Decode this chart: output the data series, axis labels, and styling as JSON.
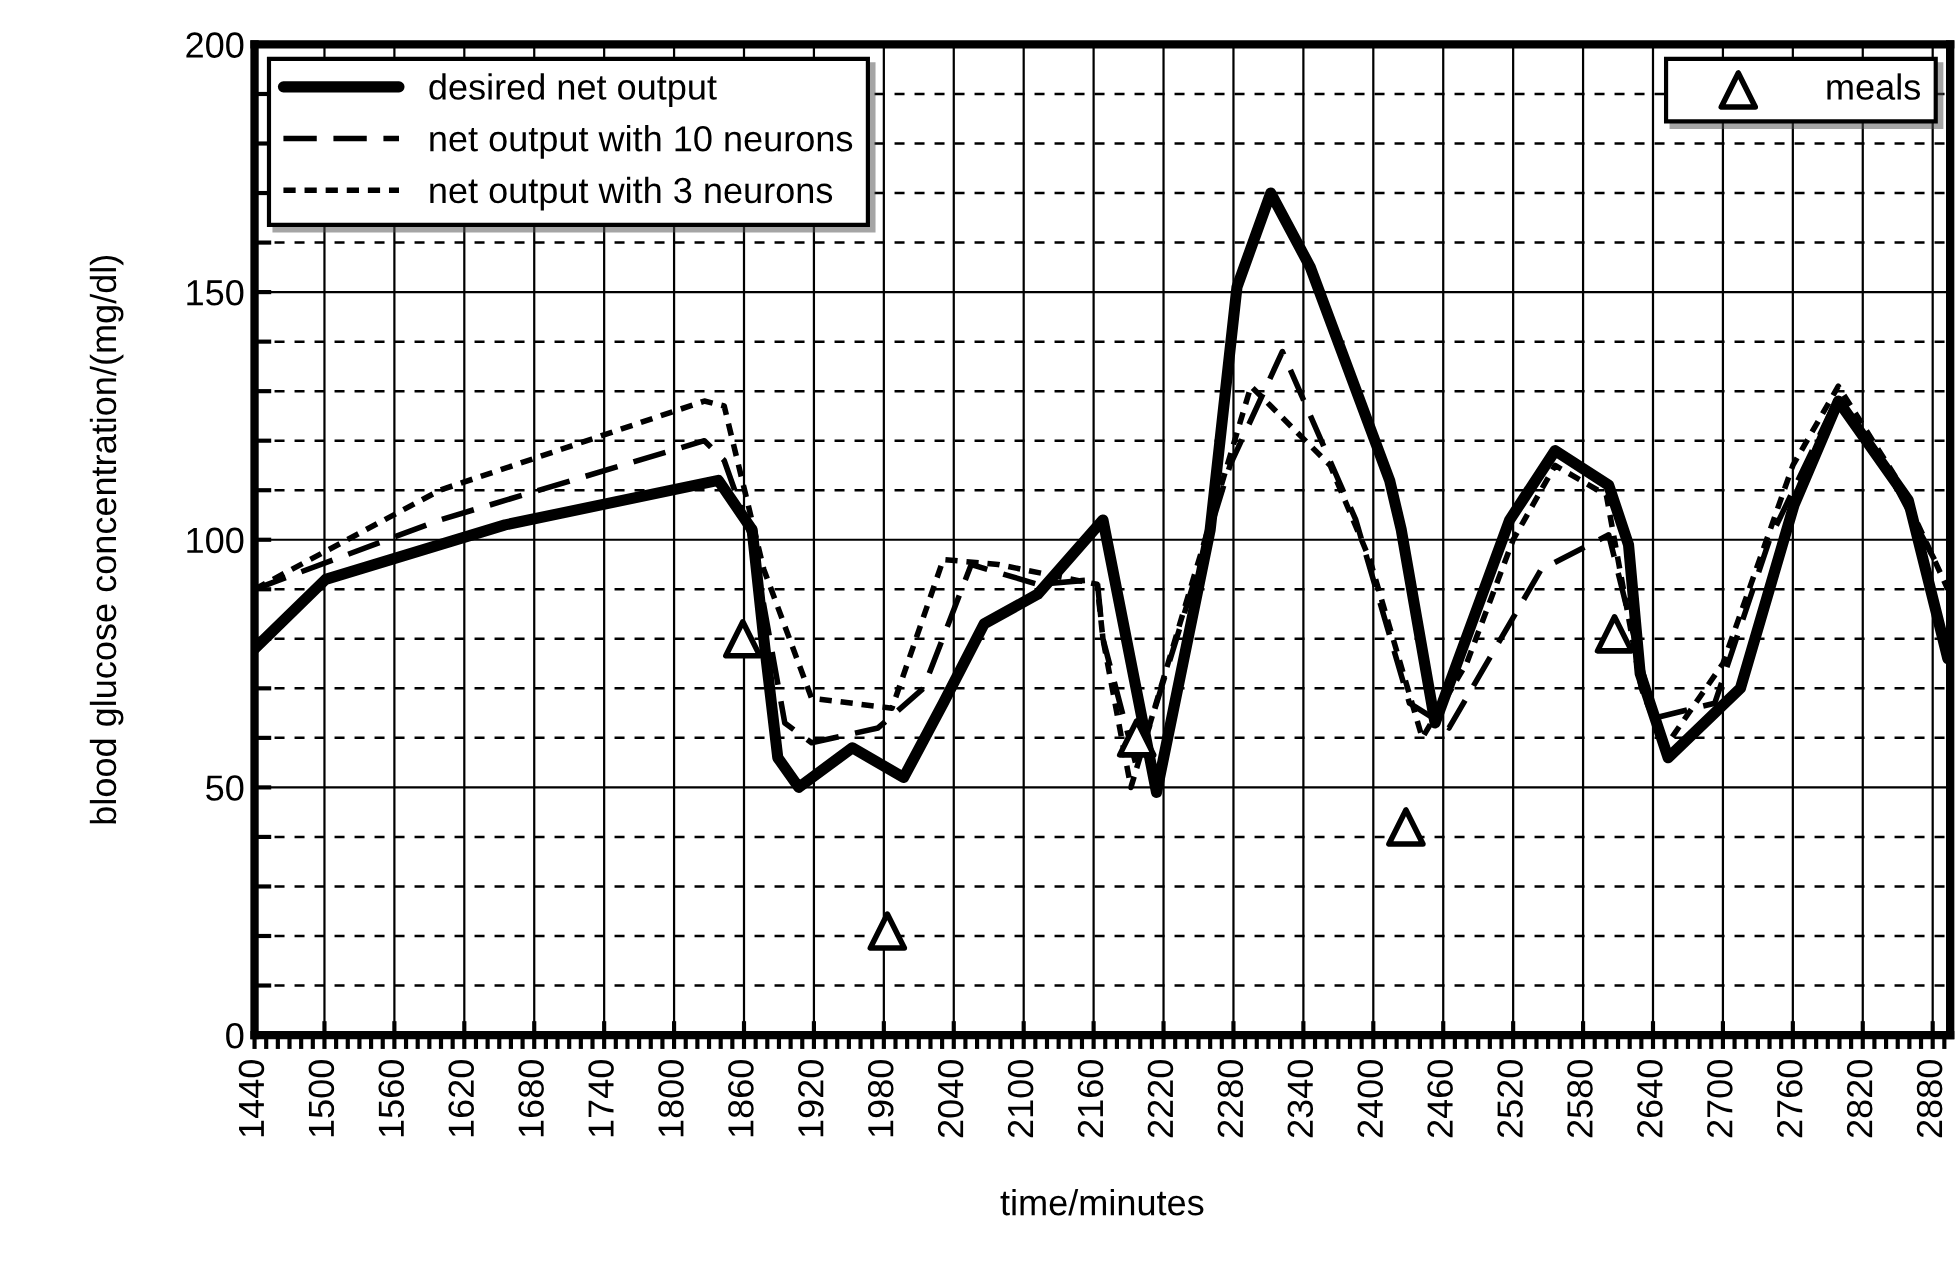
{
  "chart_data": {
    "type": "line",
    "xlabel": "time/minutes",
    "ylabel": "blood glucose concentration/(mg/dl)",
    "xlim": [
      1440,
      2895
    ],
    "ylim": [
      0,
      200
    ],
    "xticks": [
      1440,
      {
        "value": 1450,
        "label": null
      },
      {
        "value": 1460,
        "label": null
      },
      {
        "value": 1470,
        "label": null
      },
      {
        "value": 1480,
        "label": null
      },
      {
        "value": 1490,
        "label": null
      },
      1500,
      {
        "value": 1510,
        "label": null
      },
      {
        "value": 1520,
        "label": null
      },
      {
        "value": 1530,
        "label": null
      },
      {
        "value": 1540,
        "label": null
      },
      {
        "value": 1550,
        "label": null
      },
      1560,
      {
        "value": 1570,
        "label": null
      },
      {
        "value": 1580,
        "label": null
      },
      {
        "value": 1590,
        "label": null
      },
      {
        "value": 1600,
        "label": null
      },
      {
        "value": 1610,
        "label": null
      },
      1620,
      {
        "value": 1630,
        "label": null
      },
      {
        "value": 1640,
        "label": null
      },
      {
        "value": 1650,
        "label": null
      },
      {
        "value": 1660,
        "label": null
      },
      {
        "value": 1670,
        "label": null
      },
      1680,
      {
        "value": 1690,
        "label": null
      },
      {
        "value": 1700,
        "label": null
      },
      {
        "value": 1710,
        "label": null
      },
      {
        "value": 1720,
        "label": null
      },
      {
        "value": 1730,
        "label": null
      },
      1740,
      {
        "value": 1750,
        "label": null
      },
      {
        "value": 1760,
        "label": null
      },
      {
        "value": 1770,
        "label": null
      },
      {
        "value": 1780,
        "label": null
      },
      {
        "value": 1790,
        "label": null
      },
      1800,
      {
        "value": 1810,
        "label": null
      },
      {
        "value": 1820,
        "label": null
      },
      {
        "value": 1830,
        "label": null
      },
      {
        "value": 1840,
        "label": null
      },
      {
        "value": 1850,
        "label": null
      },
      1860,
      {
        "value": 1870,
        "label": null
      },
      {
        "value": 1880,
        "label": null
      },
      {
        "value": 1890,
        "label": null
      },
      {
        "value": 1900,
        "label": null
      },
      {
        "value": 1910,
        "label": null
      },
      1920,
      {
        "value": 1930,
        "label": null
      },
      {
        "value": 1940,
        "label": null
      },
      {
        "value": 1950,
        "label": null
      },
      {
        "value": 1960,
        "label": null
      },
      {
        "value": 1970,
        "label": null
      },
      1980,
      {
        "value": 1990,
        "label": null
      },
      {
        "value": 2000,
        "label": null
      },
      {
        "value": 2010,
        "label": null
      },
      {
        "value": 2020,
        "label": null
      },
      {
        "value": 2030,
        "label": null
      },
      2040,
      {
        "value": 2050,
        "label": null
      },
      {
        "value": 2060,
        "label": null
      },
      {
        "value": 2070,
        "label": null
      },
      {
        "value": 2080,
        "label": null
      },
      {
        "value": 2090,
        "label": null
      },
      2100,
      {
        "value": 2110,
        "label": null
      },
      {
        "value": 2120,
        "label": null
      },
      {
        "value": 2130,
        "label": null
      },
      {
        "value": 2140,
        "label": null
      },
      {
        "value": 2150,
        "label": null
      },
      2160,
      {
        "value": 2170,
        "label": null
      },
      {
        "value": 2180,
        "label": null
      },
      {
        "value": 2190,
        "label": null
      },
      {
        "value": 2200,
        "label": null
      },
      {
        "value": 2210,
        "label": null
      },
      2220,
      {
        "value": 2230,
        "label": null
      },
      {
        "value": 2240,
        "label": null
      },
      {
        "value": 2250,
        "label": null
      },
      {
        "value": 2260,
        "label": null
      },
      {
        "value": 2270,
        "label": null
      },
      2280,
      {
        "value": 2290,
        "label": null
      },
      {
        "value": 2300,
        "label": null
      },
      {
        "value": 2310,
        "label": null
      },
      {
        "value": 2320,
        "label": null
      },
      {
        "value": 2330,
        "label": null
      },
      2340,
      {
        "value": 2350,
        "label": null
      },
      {
        "value": 2360,
        "label": null
      },
      {
        "value": 2370,
        "label": null
      },
      {
        "value": 2380,
        "label": null
      },
      {
        "value": 2390,
        "label": null
      },
      2400,
      {
        "value": 2410,
        "label": null
      },
      {
        "value": 2420,
        "label": null
      },
      {
        "value": 2430,
        "label": null
      },
      {
        "value": 2440,
        "label": null
      },
      {
        "value": 2450,
        "label": null
      },
      2460,
      {
        "value": 2470,
        "label": null
      },
      {
        "value": 2480,
        "label": null
      },
      {
        "value": 2490,
        "label": null
      },
      {
        "value": 2500,
        "label": null
      },
      {
        "value": 2510,
        "label": null
      },
      2520,
      {
        "value": 2530,
        "label": null
      },
      {
        "value": 2540,
        "label": null
      },
      {
        "value": 2550,
        "label": null
      },
      {
        "value": 2560,
        "label": null
      },
      {
        "value": 2570,
        "label": null
      },
      2580,
      {
        "value": 2590,
        "label": null
      },
      {
        "value": 2600,
        "label": null
      },
      {
        "value": 2610,
        "label": null
      },
      {
        "value": 2620,
        "label": null
      },
      {
        "value": 2630,
        "label": null
      },
      2640,
      {
        "value": 2650,
        "label": null
      },
      {
        "value": 2660,
        "label": null
      },
      {
        "value": 2670,
        "label": null
      },
      {
        "value": 2680,
        "label": null
      },
      {
        "value": 2690,
        "label": null
      },
      2700,
      {
        "value": 2710,
        "label": null
      },
      {
        "value": 2720,
        "label": null
      },
      {
        "value": 2730,
        "label": null
      },
      {
        "value": 2740,
        "label": null
      },
      {
        "value": 2750,
        "label": null
      },
      2760,
      {
        "value": 2770,
        "label": null
      },
      {
        "value": 2780,
        "label": null
      },
      {
        "value": 2790,
        "label": null
      },
      {
        "value": 2800,
        "label": null
      },
      {
        "value": 2810,
        "label": null
      },
      2820,
      {
        "value": 2830,
        "label": null
      },
      {
        "value": 2840,
        "label": null
      },
      {
        "value": 2850,
        "label": null
      },
      {
        "value": 2860,
        "label": null
      },
      {
        "value": 2870,
        "label": null
      },
      2880,
      {
        "value": 2890,
        "label": null
      }
    ],
    "yticks": [
      0,
      {
        "value": 10,
        "label": null
      },
      {
        "value": 20,
        "label": null
      },
      {
        "value": 30,
        "label": null
      },
      {
        "value": 40,
        "label": null
      },
      50,
      {
        "value": 60,
        "label": null
      },
      {
        "value": 70,
        "label": null
      },
      {
        "value": 80,
        "label": null
      },
      {
        "value": 90,
        "label": null
      },
      100,
      {
        "value": 110,
        "label": null
      },
      {
        "value": 120,
        "label": null
      },
      {
        "value": 130,
        "label": null
      },
      {
        "value": 140,
        "label": null
      },
      150,
      {
        "value": 160,
        "label": null
      },
      {
        "value": 170,
        "label": null
      },
      {
        "value": 180,
        "label": null
      },
      {
        "value": 190,
        "label": null
      },
      200
    ],
    "grid": true,
    "legend": "top left",
    "series": [
      {
        "name": "desired net output",
        "color": "#000000",
        "line_style": "solid",
        "x": [
          1440,
          1501,
          1655,
          1838,
          1867,
          1877,
          1889,
          1907,
          1953,
          1997,
          2031,
          2066,
          2112,
          2168,
          2214,
          2260,
          2283,
          2312,
          2346,
          2414,
          2424,
          2453,
          2517,
          2556,
          2602,
          2619,
          2629,
          2653,
          2715,
          2761,
          2799,
          2859,
          2893
        ],
        "values": [
          78,
          92,
          103,
          112,
          102,
          80,
          56,
          50,
          58,
          52,
          67,
          83,
          89,
          104,
          49,
          102,
          151,
          170,
          155,
          112,
          102,
          63,
          104,
          118,
          111,
          99,
          73,
          56,
          70,
          107,
          128,
          108,
          76
        ]
      },
      {
        "name": "net output with 10 neurons",
        "color": "#000000",
        "line_style": "dashed",
        "x": [
          1440,
          1599,
          1826,
          1843,
          1867,
          1895,
          1918,
          1975,
          2014,
          2055,
          2112,
          2163,
          2168,
          2197,
          2277,
          2322,
          2385,
          2431,
          2465,
          2544,
          2602,
          2641,
          2693,
          2740,
          2799,
          2850,
          2886
        ],
        "values": [
          90,
          104,
          120,
          116,
          100,
          63,
          59,
          62,
          70,
          95,
          91,
          92,
          80,
          54,
          115,
          138,
          104,
          67,
          62,
          94,
          101,
          64,
          67,
          100,
          129,
          110,
          94
        ]
      },
      {
        "name": "net output with 3 neurons",
        "color": "#000000",
        "line_style": "dotted",
        "x": [
          1440,
          1599,
          1826,
          1843,
          1877,
          1918,
          1987,
          2031,
          2078,
          2163,
          2168,
          2192,
          2295,
          2363,
          2397,
          2442,
          2480,
          2520,
          2556,
          2600,
          2630,
          2650,
          2700,
          2760,
          2799,
          2850,
          2893
        ],
        "values": [
          90,
          110,
          128,
          127,
          94,
          68,
          66,
          96,
          95,
          91,
          80,
          50,
          131,
          115,
          96,
          60,
          75,
          100,
          115,
          109,
          70,
          58,
          75,
          115,
          131,
          112,
          90
        ]
      },
      {
        "name": "meals",
        "type": "scatter",
        "marker": "triangle",
        "color": "#000000",
        "x": [
          1859,
          1983,
          2197,
          2428,
          2607
        ],
        "values": [
          80,
          21,
          60,
          42,
          81
        ]
      }
    ]
  }
}
